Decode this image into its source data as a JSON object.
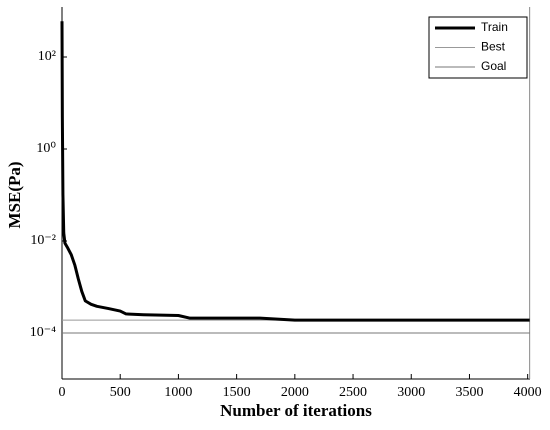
{
  "chart_data": {
    "type": "line",
    "yscale": "log",
    "grid": false,
    "xlabel": "Number of iterations",
    "ylabel": "MSE(Pa)",
    "xlim": [
      0,
      4020
    ],
    "xticks": [
      0,
      500,
      1000,
      1500,
      2000,
      2500,
      3000,
      3500,
      4000
    ],
    "ylim": [
      1e-05,
      1000
    ],
    "yticks": [
      {
        "value": 0.0001,
        "label": "10⁻⁴"
      },
      {
        "value": 0.01,
        "label": "10⁻²"
      },
      {
        "value": 1,
        "label": "10⁰"
      },
      {
        "value": 100,
        "label": "10²"
      }
    ],
    "legend": "top-right",
    "vlines": [
      4017
    ],
    "series": [
      {
        "name": "Train",
        "color": "#000000",
        "width": 3,
        "x": [
          0,
          3,
          8,
          15,
          25,
          50,
          80,
          110,
          140,
          170,
          200,
          250,
          300,
          400,
          500,
          550,
          700,
          1000,
          1100,
          1500,
          1700,
          2000,
          2500,
          3000,
          4017
        ],
        "values": [
          600,
          5,
          0.1,
          0.015,
          0.009,
          0.007,
          0.005,
          0.003,
          0.0015,
          0.0008,
          0.0005,
          0.00042,
          0.00038,
          0.00034,
          0.0003,
          0.00026,
          0.00025,
          0.00024,
          0.00021,
          0.00021,
          0.00021,
          0.00019,
          0.00019,
          0.00019,
          0.00019
        ]
      },
      {
        "name": "Best",
        "color": "#999999",
        "width": 1,
        "x": [
          0,
          4017
        ],
        "values": [
          0.00019,
          0.00019
        ]
      },
      {
        "name": "Goal",
        "color": "#777777",
        "width": 1,
        "x": [
          0,
          4017
        ],
        "values": [
          0.0001,
          0.0001
        ]
      }
    ]
  }
}
